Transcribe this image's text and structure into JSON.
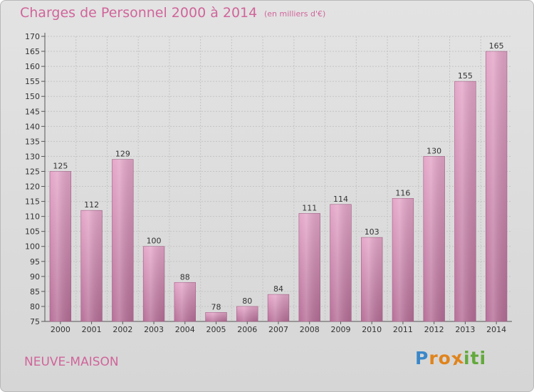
{
  "header": {
    "title": "Charges de Personnel 2000 à 2014",
    "subtitle": "(en milliers d'€)"
  },
  "footer": {
    "location": "NEUVE-MAISON",
    "logo_text": "Proxiti",
    "logo_letters": [
      {
        "ch": "P",
        "color": "#3a87c8"
      },
      {
        "ch": "r",
        "color": "#e0841c"
      },
      {
        "ch": "o",
        "color": "#e0841c"
      },
      {
        "ch": "x",
        "color": "#e0841c"
      },
      {
        "ch": "i",
        "color": "#63a93b"
      },
      {
        "ch": "t",
        "color": "#63a93b"
      },
      {
        "ch": "i",
        "color": "#63a93b"
      }
    ]
  },
  "colors": {
    "bar_top": "#e4a6c8",
    "bar_bottom": "#b66f98",
    "accent": "#d0659a"
  },
  "chart_data": {
    "type": "bar",
    "title": "Charges de Personnel 2000 à 2014",
    "subtitle": "(en milliers d'€)",
    "categories": [
      "2000",
      "2001",
      "2002",
      "2003",
      "2004",
      "2005",
      "2006",
      "2007",
      "2008",
      "2009",
      "2010",
      "2011",
      "2012",
      "2013",
      "2014"
    ],
    "values": [
      125,
      112,
      129,
      100,
      88,
      78,
      80,
      84,
      111,
      114,
      103,
      116,
      130,
      155,
      165
    ],
    "ylim": [
      75,
      170
    ],
    "yticks": [
      75,
      80,
      85,
      90,
      95,
      100,
      105,
      110,
      115,
      120,
      125,
      130,
      135,
      140,
      145,
      150,
      155,
      160,
      165,
      170
    ],
    "grid": true,
    "data_labels": true
  }
}
